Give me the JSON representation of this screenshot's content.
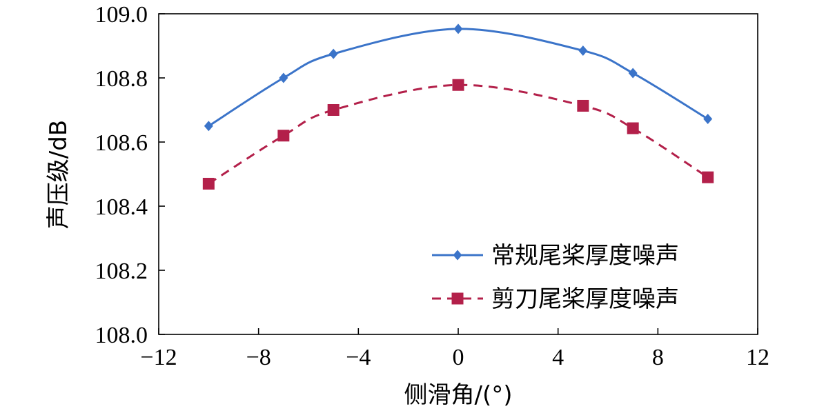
{
  "chart_data": {
    "type": "line",
    "xlabel": "侧滑角/(°)",
    "ylabel": "声压级/dB",
    "xlim": [
      -12,
      12
    ],
    "ylim": [
      108.0,
      109.0
    ],
    "xticks": [
      -12,
      -8,
      -4,
      0,
      4,
      8,
      12
    ],
    "xtick_labels": [
      "−12",
      "−8",
      "−4",
      "0",
      "4",
      "8",
      "12"
    ],
    "yticks": [
      108.0,
      108.2,
      108.4,
      108.6,
      108.8,
      109.0
    ],
    "ytick_labels": [
      "108.0",
      "108.2",
      "108.4",
      "108.6",
      "108.8",
      "109.0"
    ],
    "grid": false,
    "legend_position": "bottom-right",
    "x": [
      -10,
      -7,
      -5,
      0,
      5,
      7,
      10
    ],
    "series": [
      {
        "name": "常规尾桨厚度噪声",
        "values": [
          108.65,
          108.8,
          108.875,
          108.953,
          108.885,
          108.815,
          108.672
        ],
        "color": "#3b74c9",
        "line_style": "solid",
        "marker": "diamond"
      },
      {
        "name": "剪刀尾桨厚度噪声",
        "values": [
          108.47,
          108.62,
          108.7,
          108.778,
          108.713,
          108.643,
          108.49
        ],
        "color": "#b3204a",
        "line_style": "dashed",
        "marker": "square"
      }
    ]
  }
}
